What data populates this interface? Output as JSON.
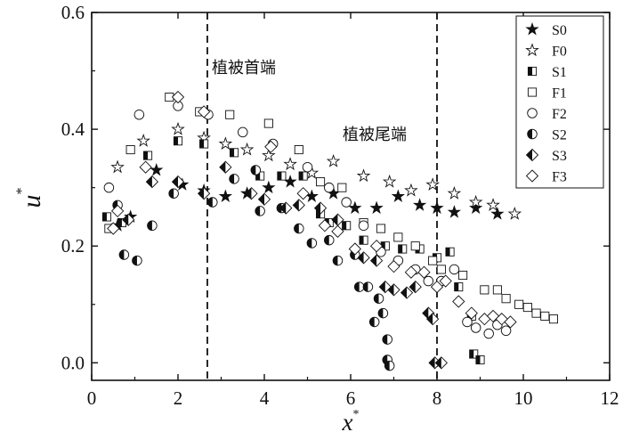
{
  "chart_data": {
    "type": "scatter",
    "xlabel": "x",
    "xlabel_sup": "*",
    "ylabel": "u",
    "ylabel_sup": "*",
    "xlim": [
      0,
      12
    ],
    "ylim": [
      -0.03,
      0.6
    ],
    "xticks": [
      "0",
      "2",
      "4",
      "6",
      "8",
      "10",
      "12"
    ],
    "yticks": [
      "0.0",
      "0.2",
      "0.4",
      "0.6"
    ],
    "legend_position": "top-right",
    "annotations": [
      {
        "text": "植被首端",
        "x": 2.68
      },
      {
        "text": "植被尾端",
        "x": 8.0
      }
    ],
    "series": [
      {
        "name": "S0",
        "marker": "star-filled",
        "points": [
          [
            0.6,
            0.235
          ],
          [
            0.9,
            0.25
          ],
          [
            1.5,
            0.33
          ],
          [
            2.1,
            0.305
          ],
          [
            2.6,
            0.295
          ],
          [
            3.1,
            0.285
          ],
          [
            3.6,
            0.29
          ],
          [
            4.1,
            0.3
          ],
          [
            4.6,
            0.31
          ],
          [
            5.1,
            0.285
          ],
          [
            5.6,
            0.29
          ],
          [
            6.1,
            0.265
          ],
          [
            6.6,
            0.265
          ],
          [
            7.1,
            0.285
          ],
          [
            7.6,
            0.27
          ],
          [
            8.0,
            0.265
          ],
          [
            8.4,
            0.258
          ],
          [
            8.9,
            0.265
          ],
          [
            9.4,
            0.255
          ]
        ]
      },
      {
        "name": "F0",
        "marker": "star-open",
        "points": [
          [
            0.6,
            0.335
          ],
          [
            1.2,
            0.38
          ],
          [
            2.0,
            0.4
          ],
          [
            2.6,
            0.385
          ],
          [
            3.1,
            0.375
          ],
          [
            3.6,
            0.365
          ],
          [
            4.1,
            0.355
          ],
          [
            4.6,
            0.34
          ],
          [
            5.1,
            0.325
          ],
          [
            5.6,
            0.345
          ],
          [
            6.3,
            0.32
          ],
          [
            6.9,
            0.31
          ],
          [
            7.4,
            0.295
          ],
          [
            7.9,
            0.305
          ],
          [
            8.4,
            0.29
          ],
          [
            8.9,
            0.275
          ],
          [
            9.3,
            0.27
          ],
          [
            9.8,
            0.255
          ]
        ]
      },
      {
        "name": "S1",
        "marker": "square-half",
        "points": [
          [
            0.35,
            0.25
          ],
          [
            0.7,
            0.24
          ],
          [
            1.3,
            0.355
          ],
          [
            2.0,
            0.38
          ],
          [
            2.6,
            0.375
          ],
          [
            3.3,
            0.36
          ],
          [
            3.9,
            0.32
          ],
          [
            4.4,
            0.32
          ],
          [
            4.9,
            0.32
          ],
          [
            5.3,
            0.255
          ],
          [
            5.5,
            0.24
          ],
          [
            5.9,
            0.235
          ],
          [
            6.3,
            0.21
          ],
          [
            6.8,
            0.2
          ],
          [
            7.2,
            0.195
          ],
          [
            7.6,
            0.195
          ],
          [
            8.0,
            0.18
          ],
          [
            8.3,
            0.19
          ],
          [
            8.5,
            0.13
          ],
          [
            8.8,
            0.08
          ],
          [
            8.85,
            0.015
          ],
          [
            9.0,
            0.005
          ]
        ]
      },
      {
        "name": "F1",
        "marker": "square-open",
        "points": [
          [
            0.4,
            0.23
          ],
          [
            0.9,
            0.365
          ],
          [
            1.8,
            0.455
          ],
          [
            2.5,
            0.43
          ],
          [
            3.2,
            0.425
          ],
          [
            4.1,
            0.41
          ],
          [
            4.8,
            0.365
          ],
          [
            5.3,
            0.31
          ],
          [
            5.8,
            0.3
          ],
          [
            6.3,
            0.24
          ],
          [
            6.7,
            0.23
          ],
          [
            7.1,
            0.215
          ],
          [
            7.5,
            0.2
          ],
          [
            7.9,
            0.175
          ],
          [
            8.1,
            0.16
          ],
          [
            8.6,
            0.15
          ],
          [
            9.1,
            0.125
          ],
          [
            9.4,
            0.125
          ],
          [
            9.6,
            0.11
          ],
          [
            9.9,
            0.1
          ],
          [
            10.1,
            0.095
          ],
          [
            10.3,
            0.085
          ],
          [
            10.5,
            0.08
          ],
          [
            10.7,
            0.075
          ]
        ]
      },
      {
        "name": "F2",
        "marker": "circle-open",
        "points": [
          [
            0.4,
            0.3
          ],
          [
            1.1,
            0.425
          ],
          [
            2.0,
            0.44
          ],
          [
            2.7,
            0.425
          ],
          [
            3.5,
            0.395
          ],
          [
            4.2,
            0.375
          ],
          [
            5.0,
            0.335
          ],
          [
            5.5,
            0.3
          ],
          [
            5.9,
            0.275
          ],
          [
            6.3,
            0.235
          ],
          [
            6.7,
            0.19
          ],
          [
            7.1,
            0.175
          ],
          [
            7.5,
            0.16
          ],
          [
            7.8,
            0.14
          ],
          [
            8.1,
            0.14
          ],
          [
            8.4,
            0.16
          ],
          [
            8.7,
            0.07
          ],
          [
            8.9,
            0.06
          ],
          [
            9.2,
            0.05
          ],
          [
            9.4,
            0.065
          ],
          [
            9.6,
            0.055
          ]
        ]
      },
      {
        "name": "S2",
        "marker": "circle-half",
        "points": [
          [
            0.6,
            0.27
          ],
          [
            0.75,
            0.185
          ],
          [
            1.05,
            0.175
          ],
          [
            1.4,
            0.235
          ],
          [
            1.9,
            0.29
          ],
          [
            2.8,
            0.275
          ],
          [
            3.3,
            0.315
          ],
          [
            3.8,
            0.33
          ],
          [
            3.9,
            0.26
          ],
          [
            4.4,
            0.265
          ],
          [
            4.8,
            0.23
          ],
          [
            5.1,
            0.205
          ],
          [
            5.5,
            0.21
          ],
          [
            5.7,
            0.175
          ],
          [
            6.1,
            0.185
          ],
          [
            6.2,
            0.13
          ],
          [
            6.4,
            0.13
          ],
          [
            6.55,
            0.07
          ],
          [
            6.65,
            0.11
          ],
          [
            6.75,
            0.085
          ],
          [
            6.85,
            0.04
          ],
          [
            6.85,
            0.005
          ],
          [
            6.9,
            -0.005
          ]
        ]
      },
      {
        "name": "S3",
        "marker": "diamond-half",
        "points": [
          [
            0.85,
            0.245
          ],
          [
            1.4,
            0.31
          ],
          [
            2.0,
            0.31
          ],
          [
            2.6,
            0.29
          ],
          [
            3.1,
            0.335
          ],
          [
            3.7,
            0.29
          ],
          [
            4.0,
            0.28
          ],
          [
            4.5,
            0.265
          ],
          [
            4.8,
            0.27
          ],
          [
            5.3,
            0.265
          ],
          [
            5.7,
            0.245
          ],
          [
            6.3,
            0.18
          ],
          [
            6.6,
            0.175
          ],
          [
            6.8,
            0.13
          ],
          [
            7.0,
            0.125
          ],
          [
            7.3,
            0.12
          ],
          [
            7.5,
            0.13
          ],
          [
            7.8,
            0.085
          ],
          [
            7.9,
            0.075
          ],
          [
            7.95,
            0.0
          ],
          [
            8.1,
            0.0
          ]
        ]
      },
      {
        "name": "F3",
        "marker": "diamond-open",
        "points": [
          [
            0.5,
            0.23
          ],
          [
            0.6,
            0.26
          ],
          [
            1.25,
            0.335
          ],
          [
            2.0,
            0.455
          ],
          [
            2.6,
            0.43
          ],
          [
            4.15,
            0.37
          ],
          [
            4.9,
            0.29
          ],
          [
            5.4,
            0.235
          ],
          [
            5.7,
            0.225
          ],
          [
            6.1,
            0.195
          ],
          [
            6.6,
            0.2
          ],
          [
            7.0,
            0.165
          ],
          [
            7.4,
            0.155
          ],
          [
            7.7,
            0.155
          ],
          [
            8.0,
            0.13
          ],
          [
            8.2,
            0.14
          ],
          [
            8.5,
            0.105
          ],
          [
            8.8,
            0.085
          ],
          [
            9.1,
            0.075
          ],
          [
            9.3,
            0.08
          ],
          [
            9.5,
            0.075
          ],
          [
            9.7,
            0.07
          ]
        ]
      }
    ]
  }
}
